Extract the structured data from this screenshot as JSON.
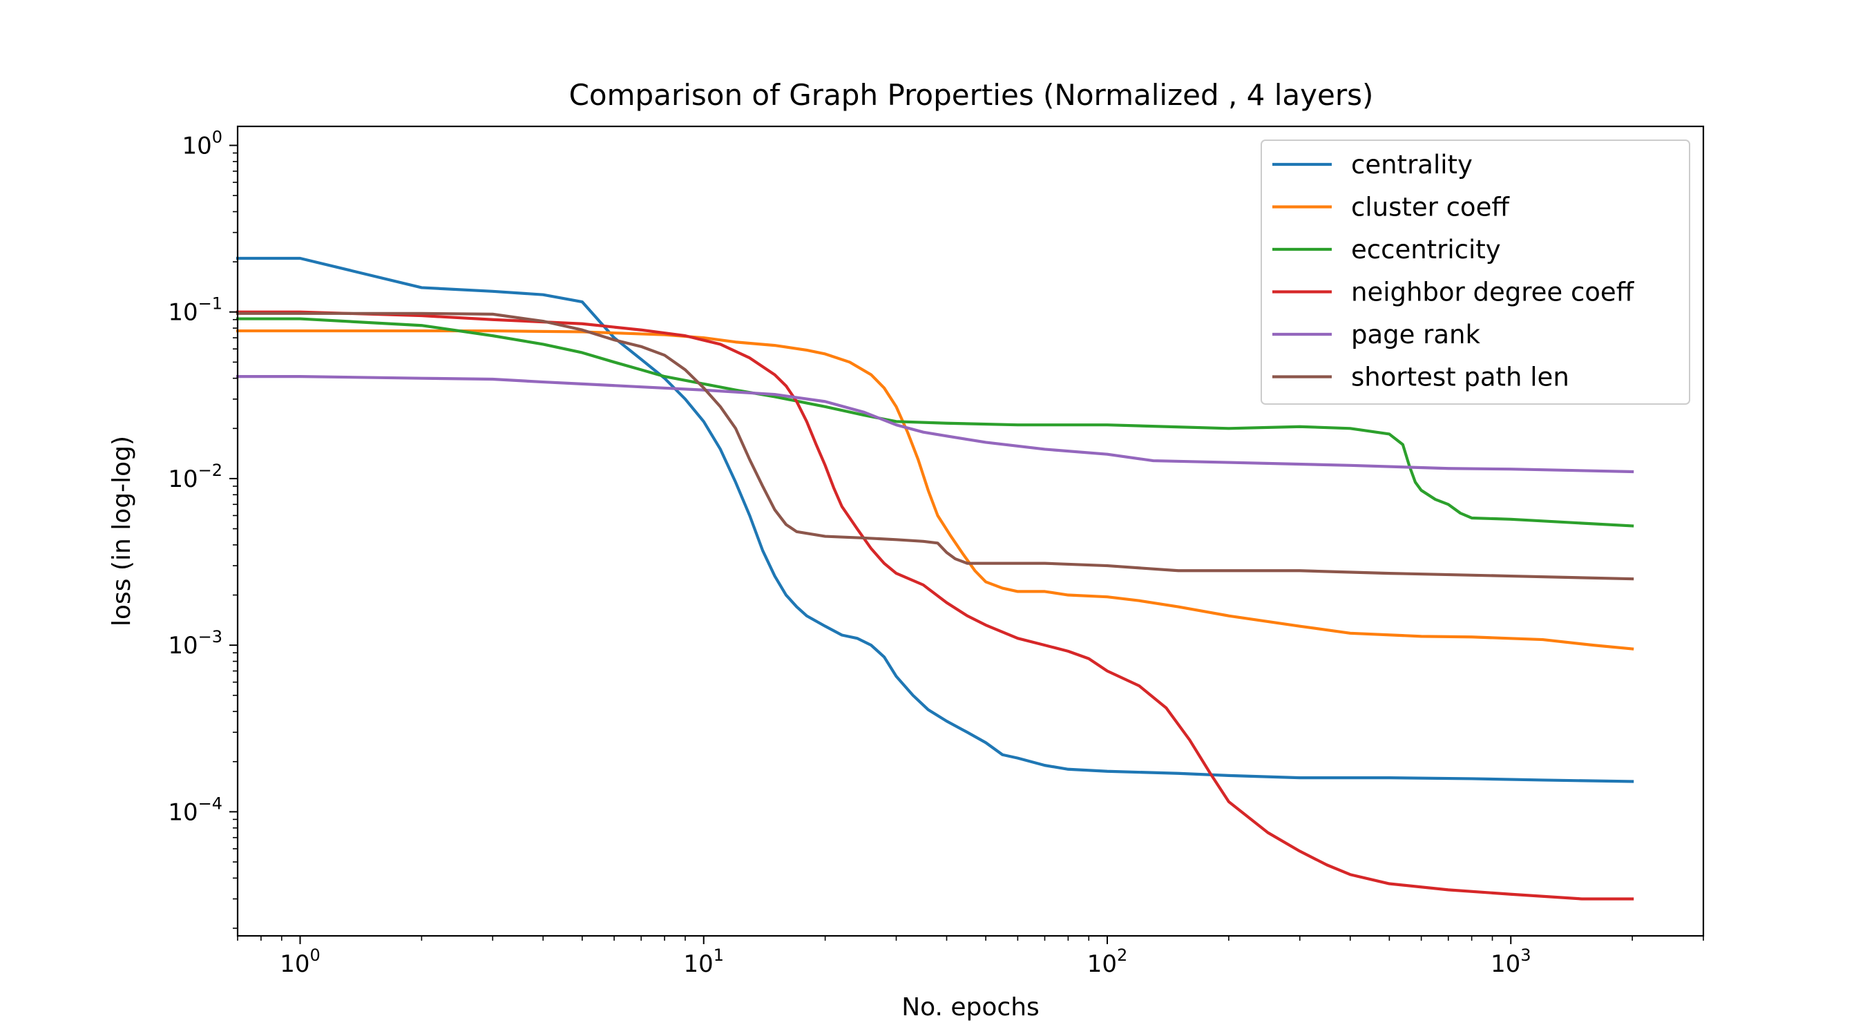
{
  "chart_data": {
    "type": "line",
    "title": "Comparison of Graph Properties (Normalized , 4 layers)",
    "xlabel": "No. epochs",
    "ylabel": "loss (in log-log)",
    "xscale": "log",
    "yscale": "log",
    "xlim": [
      0.7,
      3000
    ],
    "ylim": [
      1.8e-05,
      1.3
    ],
    "xticks": [
      {
        "value": 1,
        "base": "10",
        "exp": "0"
      },
      {
        "value": 10,
        "base": "10",
        "exp": "1"
      },
      {
        "value": 100,
        "base": "10",
        "exp": "2"
      },
      {
        "value": 1000,
        "base": "10",
        "exp": "3"
      }
    ],
    "yticks": [
      {
        "value": 0.0001,
        "base": "10",
        "exp": "−4"
      },
      {
        "value": 0.001,
        "base": "10",
        "exp": "−3"
      },
      {
        "value": 0.01,
        "base": "10",
        "exp": "−2"
      },
      {
        "value": 0.1,
        "base": "10",
        "exp": "−1"
      },
      {
        "value": 1,
        "base": "10",
        "exp": "0"
      }
    ],
    "grid": false,
    "legend_position": "top-right",
    "series": [
      {
        "name": "centrality",
        "color": "#1f77b4",
        "points": [
          [
            0.7,
            0.21
          ],
          [
            1,
            0.21
          ],
          [
            2,
            0.14
          ],
          [
            3,
            0.133
          ],
          [
            4,
            0.127
          ],
          [
            5,
            0.115
          ],
          [
            6,
            0.07
          ],
          [
            7,
            0.052
          ],
          [
            8,
            0.04
          ],
          [
            9,
            0.03
          ],
          [
            10,
            0.022
          ],
          [
            11,
            0.015
          ],
          [
            12,
            0.0095
          ],
          [
            13,
            0.006
          ],
          [
            14,
            0.0037
          ],
          [
            15,
            0.0026
          ],
          [
            16,
            0.002
          ],
          [
            17,
            0.0017
          ],
          [
            18,
            0.0015
          ],
          [
            20,
            0.0013
          ],
          [
            22,
            0.00115
          ],
          [
            24,
            0.0011
          ],
          [
            26,
            0.001
          ],
          [
            28,
            0.00085
          ],
          [
            30,
            0.00065
          ],
          [
            33,
            0.0005
          ],
          [
            36,
            0.00041
          ],
          [
            40,
            0.00035
          ],
          [
            45,
            0.0003
          ],
          [
            50,
            0.00026
          ],
          [
            55,
            0.00022
          ],
          [
            60,
            0.00021
          ],
          [
            70,
            0.00019
          ],
          [
            80,
            0.00018
          ],
          [
            100,
            0.000175
          ],
          [
            150,
            0.00017
          ],
          [
            200,
            0.000165
          ],
          [
            300,
            0.00016
          ],
          [
            500,
            0.00016
          ],
          [
            800,
            0.000158
          ],
          [
            1200,
            0.000155
          ],
          [
            2000,
            0.000152
          ]
        ]
      },
      {
        "name": "cluster coeff",
        "color": "#ff7f0e",
        "points": [
          [
            0.7,
            0.077
          ],
          [
            1,
            0.077
          ],
          [
            3,
            0.077
          ],
          [
            5,
            0.076
          ],
          [
            8,
            0.073
          ],
          [
            10,
            0.07
          ],
          [
            12,
            0.066
          ],
          [
            15,
            0.063
          ],
          [
            18,
            0.059
          ],
          [
            20,
            0.056
          ],
          [
            23,
            0.05
          ],
          [
            26,
            0.042
          ],
          [
            28,
            0.035
          ],
          [
            30,
            0.027
          ],
          [
            32,
            0.019
          ],
          [
            34,
            0.013
          ],
          [
            36,
            0.0085
          ],
          [
            38,
            0.006
          ],
          [
            41,
            0.0045
          ],
          [
            44,
            0.0035
          ],
          [
            47,
            0.0028
          ],
          [
            50,
            0.0024
          ],
          [
            55,
            0.0022
          ],
          [
            60,
            0.0021
          ],
          [
            70,
            0.0021
          ],
          [
            80,
            0.002
          ],
          [
            100,
            0.00195
          ],
          [
            120,
            0.00185
          ],
          [
            150,
            0.0017
          ],
          [
            200,
            0.0015
          ],
          [
            300,
            0.0013
          ],
          [
            400,
            0.00118
          ],
          [
            600,
            0.00113
          ],
          [
            800,
            0.00112
          ],
          [
            1200,
            0.00108
          ],
          [
            1600,
            0.001
          ],
          [
            2000,
            0.00095
          ]
        ]
      },
      {
        "name": "eccentricity",
        "color": "#2ca02c",
        "points": [
          [
            0.7,
            0.091
          ],
          [
            1,
            0.091
          ],
          [
            2,
            0.083
          ],
          [
            3,
            0.072
          ],
          [
            4,
            0.064
          ],
          [
            5,
            0.057
          ],
          [
            6,
            0.05
          ],
          [
            7,
            0.045
          ],
          [
            8,
            0.041
          ],
          [
            10,
            0.037
          ],
          [
            12,
            0.034
          ],
          [
            15,
            0.031
          ],
          [
            20,
            0.027
          ],
          [
            25,
            0.024
          ],
          [
            30,
            0.022
          ],
          [
            40,
            0.0215
          ],
          [
            60,
            0.021
          ],
          [
            100,
            0.021
          ],
          [
            200,
            0.02
          ],
          [
            300,
            0.0205
          ],
          [
            400,
            0.02
          ],
          [
            500,
            0.0185
          ],
          [
            540,
            0.016
          ],
          [
            560,
            0.012
          ],
          [
            580,
            0.0095
          ],
          [
            600,
            0.0085
          ],
          [
            650,
            0.0075
          ],
          [
            700,
            0.007
          ],
          [
            750,
            0.0062
          ],
          [
            800,
            0.0058
          ],
          [
            1000,
            0.0057
          ],
          [
            1500,
            0.0054
          ],
          [
            2000,
            0.0052
          ]
        ]
      },
      {
        "name": "neighbor degree coeff",
        "color": "#d62728",
        "points": [
          [
            0.7,
            0.1
          ],
          [
            1,
            0.1
          ],
          [
            2,
            0.095
          ],
          [
            3,
            0.09
          ],
          [
            5,
            0.085
          ],
          [
            7,
            0.078
          ],
          [
            9,
            0.072
          ],
          [
            11,
            0.064
          ],
          [
            13,
            0.053
          ],
          [
            15,
            0.042
          ],
          [
            16,
            0.036
          ],
          [
            17,
            0.029
          ],
          [
            18,
            0.022
          ],
          [
            19,
            0.016
          ],
          [
            20,
            0.012
          ],
          [
            21,
            0.0088
          ],
          [
            22,
            0.0068
          ],
          [
            24,
            0.005
          ],
          [
            26,
            0.0038
          ],
          [
            28,
            0.0031
          ],
          [
            30,
            0.0027
          ],
          [
            35,
            0.0023
          ],
          [
            40,
            0.0018
          ],
          [
            45,
            0.0015
          ],
          [
            50,
            0.00132
          ],
          [
            60,
            0.0011
          ],
          [
            70,
            0.001
          ],
          [
            80,
            0.00092
          ],
          [
            90,
            0.00083
          ],
          [
            100,
            0.0007
          ],
          [
            120,
            0.00057
          ],
          [
            140,
            0.00042
          ],
          [
            160,
            0.00027
          ],
          [
            180,
            0.00017
          ],
          [
            200,
            0.000115
          ],
          [
            250,
            7.5e-05
          ],
          [
            300,
            5.8e-05
          ],
          [
            350,
            4.8e-05
          ],
          [
            400,
            4.2e-05
          ],
          [
            500,
            3.7e-05
          ],
          [
            700,
            3.4e-05
          ],
          [
            1000,
            3.2e-05
          ],
          [
            1500,
            3e-05
          ],
          [
            2000,
            3e-05
          ]
        ]
      },
      {
        "name": "page rank",
        "color": "#9467bd",
        "points": [
          [
            0.7,
            0.041
          ],
          [
            1,
            0.041
          ],
          [
            2,
            0.04
          ],
          [
            3,
            0.0395
          ],
          [
            4,
            0.038
          ],
          [
            5,
            0.037
          ],
          [
            7,
            0.0355
          ],
          [
            10,
            0.034
          ],
          [
            15,
            0.032
          ],
          [
            20,
            0.029
          ],
          [
            25,
            0.025
          ],
          [
            30,
            0.021
          ],
          [
            35,
            0.019
          ],
          [
            40,
            0.018
          ],
          [
            50,
            0.0165
          ],
          [
            70,
            0.015
          ],
          [
            100,
            0.014
          ],
          [
            130,
            0.0128
          ],
          [
            200,
            0.0125
          ],
          [
            400,
            0.012
          ],
          [
            700,
            0.0115
          ],
          [
            1000,
            0.0114
          ],
          [
            2000,
            0.011
          ]
        ]
      },
      {
        "name": "shortest path len",
        "color": "#8c564b",
        "points": [
          [
            0.7,
            0.098
          ],
          [
            1,
            0.098
          ],
          [
            2,
            0.098
          ],
          [
            3,
            0.097
          ],
          [
            4,
            0.088
          ],
          [
            5,
            0.078
          ],
          [
            6,
            0.068
          ],
          [
            7,
            0.062
          ],
          [
            8,
            0.055
          ],
          [
            9,
            0.045
          ],
          [
            10,
            0.035
          ],
          [
            11,
            0.027
          ],
          [
            12,
            0.02
          ],
          [
            13,
            0.013
          ],
          [
            14,
            0.009
          ],
          [
            15,
            0.0065
          ],
          [
            16,
            0.0053
          ],
          [
            17,
            0.0048
          ],
          [
            20,
            0.0045
          ],
          [
            25,
            0.0044
          ],
          [
            30,
            0.0043
          ],
          [
            35,
            0.0042
          ],
          [
            38,
            0.0041
          ],
          [
            40,
            0.0036
          ],
          [
            42,
            0.0033
          ],
          [
            45,
            0.0031
          ],
          [
            50,
            0.0031
          ],
          [
            70,
            0.0031
          ],
          [
            100,
            0.003
          ],
          [
            150,
            0.0028
          ],
          [
            200,
            0.0028
          ],
          [
            300,
            0.0028
          ],
          [
            500,
            0.0027
          ],
          [
            1000,
            0.0026
          ],
          [
            2000,
            0.0025
          ]
        ]
      }
    ]
  }
}
